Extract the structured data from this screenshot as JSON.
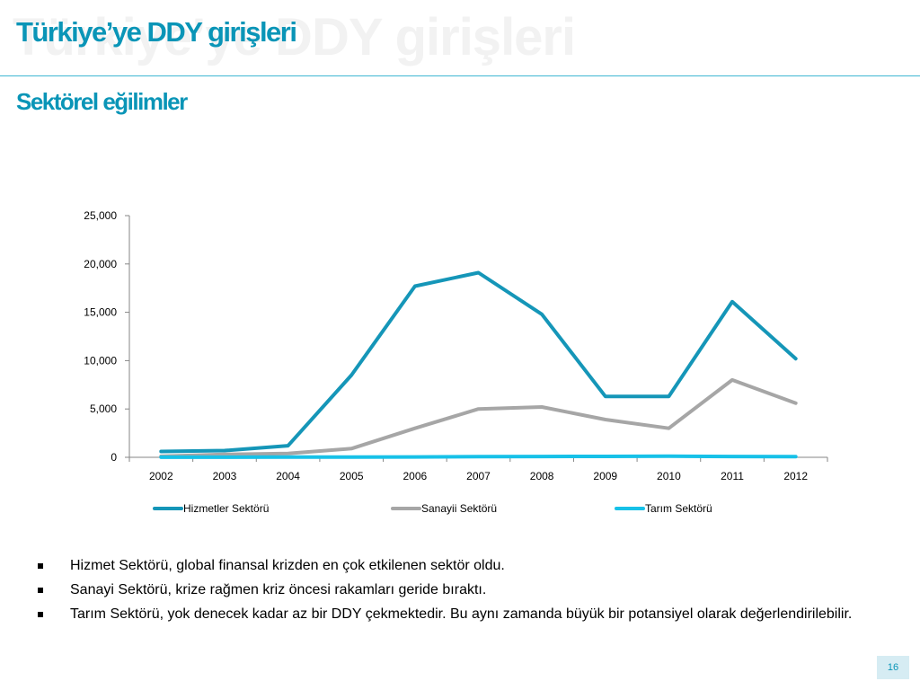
{
  "slide": {
    "watermark": "Türkiye’ye DDY girişleri",
    "title": "Türkiye’ye DDY girişleri",
    "subtitle": "Sektörel eğilimler",
    "page_number": "16"
  },
  "bullets": [
    "Hizmet Sektörü, global finansal krizden en çok etkilenen sektör oldu.",
    "Sanayi Sektörü, krize rağmen kriz öncesi rakamları geride bıraktı.",
    "Tarım Sektörü, yok denecek kadar az bir DDY çekmektedir. Bu aynı zamanda büyük bir potansiyel olarak değerlendirilebilir."
  ],
  "chart_data": {
    "type": "line",
    "title": "",
    "xlabel": "",
    "ylabel": "",
    "categories": [
      "2002",
      "2003",
      "2004",
      "2005",
      "2006",
      "2007",
      "2008",
      "2009",
      "2010",
      "2011",
      "2012"
    ],
    "yticks": [
      "0",
      "5,000",
      "10,000",
      "15,000",
      "20,000",
      "25,000"
    ],
    "ylim": [
      0,
      25000
    ],
    "grid": false,
    "legend_position": "bottom",
    "series": [
      {
        "name": "Hizmetler Sektörü",
        "color": "#1596b8",
        "values": [
          600,
          700,
          1200,
          8500,
          17700,
          19100,
          14800,
          6300,
          6300,
          16100,
          10200
        ]
      },
      {
        "name": "Sanayii Sektörü",
        "color": "#a6a6a6",
        "values": [
          100,
          300,
          400,
          900,
          3000,
          5000,
          5200,
          3900,
          3000,
          8000,
          5600
        ]
      },
      {
        "name": "Tarım Sektörü",
        "color": "#17c1e8",
        "values": [
          10,
          10,
          20,
          30,
          40,
          70,
          80,
          90,
          110,
          80,
          70
        ]
      }
    ]
  }
}
